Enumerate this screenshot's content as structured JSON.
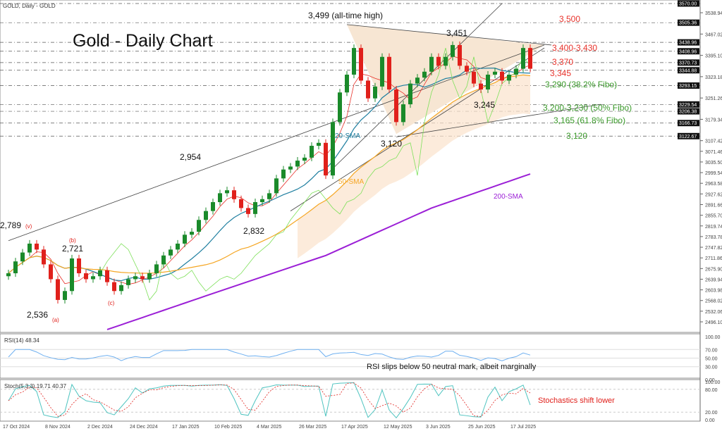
{
  "header": {
    "symbol_label": "GOLD, Daily - GOLD",
    "title": "Gold - Daily Chart"
  },
  "chart_data": {
    "type": "candlestick",
    "title": "Gold - Daily Chart",
    "ylim": [
      2480,
      3575
    ],
    "grid": false,
    "x_ticks": [
      "17 Oct 2024",
      "8 Nov 2024",
      "2 Dec 2024",
      "24 Dec 2024",
      "17 Jan 2025",
      "10 Feb 2025",
      "4 Mar 2025",
      "26 Mar 2025",
      "17 Apr 2025",
      "12 May 2025",
      "3 Jun 2025",
      "25 Jun 2025",
      "17 Jul 2025"
    ],
    "y_ticks": [
      "3538.94",
      "3467.02",
      "3395.10",
      "3323.18",
      "3251.26",
      "3179.34",
      "3107.42",
      "3071.46",
      "3035.50",
      "2999.54",
      "2963.58",
      "2927.62",
      "2891.66",
      "2855.70",
      "2819.74",
      "2783.78",
      "2747.82",
      "2711.86",
      "2675.90",
      "2639.94",
      "2603.98",
      "2568.02",
      "2532.06",
      "2496.10"
    ],
    "price_levels": [
      "3570.00",
      "3505.36",
      "3438.96",
      "3408.96",
      "3370.73",
      "3344.88",
      "3293.15",
      "3229.54",
      "3206.38",
      "3166.73",
      "3122.67"
    ],
    "closes": [
      2660,
      2700,
      2730,
      2760,
      2740,
      2690,
      2640,
      2570,
      2600,
      2710,
      2660,
      2640,
      2650,
      2670,
      2630,
      2600,
      2620,
      2640,
      2650,
      2640,
      2660,
      2690,
      2720,
      2740,
      2760,
      2790,
      2800,
      2840,
      2870,
      2900,
      2930,
      2940,
      2910,
      2880,
      2860,
      2900,
      2910,
      2930,
      2980,
      3010,
      3020,
      3040,
      3050,
      3090,
      3100,
      2990,
      3170,
      3270,
      3330,
      3420,
      3310,
      3250,
      3290,
      3390,
      3280,
      3170,
      3230,
      3300,
      3320,
      3340,
      3390,
      3360,
      3390,
      3430,
      3360,
      3340,
      3300,
      3280,
      3330,
      3340,
      3310,
      3330,
      3350,
      3420,
      3350
    ],
    "sma200_knots": [
      [
        14,
        2470
      ],
      [
        30,
        2600
      ],
      [
        45,
        2720
      ],
      [
        60,
        2880
      ],
      [
        74,
        2995
      ]
    ],
    "annotations": [
      {
        "text": "2,789",
        "sub": "(v)",
        "price": 2789
      },
      {
        "text": "2,721",
        "sub": "(b)",
        "price": 2721
      },
      {
        "text": "2,536",
        "sub": "(a)",
        "price": 2536
      },
      {
        "text": "(c)",
        "price": 2583
      },
      {
        "text": "2,954",
        "price": 2954
      },
      {
        "text": "2,832",
        "price": 2832
      },
      {
        "text": "3,499 (all-time high)",
        "price": 3499
      },
      {
        "text": "3,451",
        "price": 3451
      },
      {
        "text": "3,120",
        "price": 3120
      },
      {
        "text": "3,245",
        "price": 3245
      }
    ],
    "levels": [
      {
        "text": "3,500",
        "color": "#e8322b"
      },
      {
        "text": "3,400-3,430",
        "color": "#e8322b"
      },
      {
        "text": "3,370",
        "color": "#e8322b"
      },
      {
        "text": "3,345",
        "color": "#e8322b"
      },
      {
        "text": "3,290 (38.2% Fibo)",
        "color": "#3a9a2a"
      },
      {
        "text": "3,200-3,230 (50% Fibo)",
        "color": "#3a9a2a"
      },
      {
        "text": "3,165 (61.8% Fibo)",
        "color": "#3a9a2a"
      },
      {
        "text": "3,120",
        "color": "#3a9a2a"
      }
    ],
    "sma_labels": {
      "sma20": "20-SMA",
      "sma50": "50-SMA",
      "sma200": "200-SMA"
    },
    "colors": {
      "up": "#1a8a2a",
      "down": "#e0201b",
      "sma20": "#1f7fa0",
      "sma50": "#f5a623",
      "sma200": "#9b1fd6",
      "fast": "#e8322b",
      "lagging": "#7ee05a"
    },
    "rsi": {
      "label": "RSI(14) 48.34",
      "ticks": [
        "100.00",
        "70.00",
        "50.00",
        "30.00",
        "0.00"
      ],
      "note": "RSI slips below 50 neutral mark, albeit marginally"
    },
    "stoch": {
      "label": "Stoch(5,3,3) 19.71 40.37",
      "ticks": [
        "100.00",
        "80.00",
        "20.00",
        "0.00"
      ],
      "note": "Stochastics shift lower"
    }
  }
}
